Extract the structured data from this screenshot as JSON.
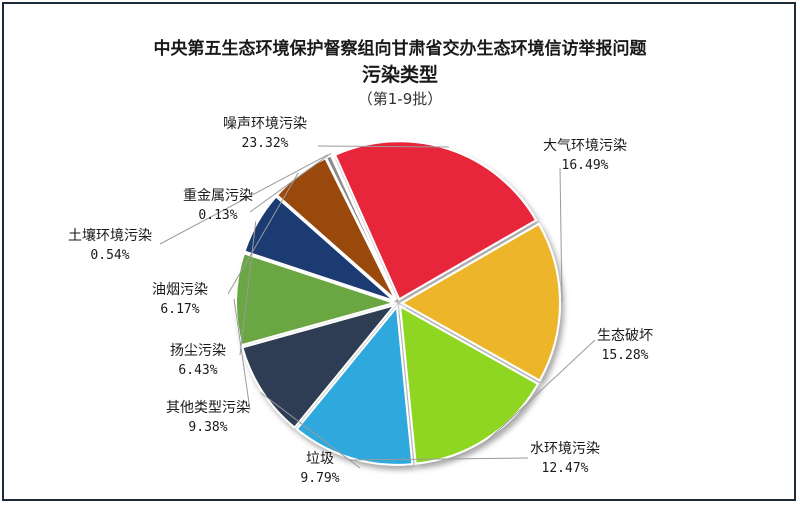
{
  "chart_data": {
    "type": "pie",
    "title": "中央第五生态环境保护督察组向甘肃省交办生态环境信访举报问题",
    "subtitle": "污染类型",
    "subtitle2": "（第1-9批）",
    "slices": [
      {
        "label": "大气环境污染",
        "value": 16.49,
        "value_text": "16.49%",
        "color": "#ecb52a"
      },
      {
        "label": "生态破坏",
        "value": 15.28,
        "value_text": "15.28%",
        "color": "#8fd620"
      },
      {
        "label": "水环境污染",
        "value": 12.47,
        "value_text": "12.47%",
        "color": "#2fa8dd"
      },
      {
        "label": "垃圾",
        "value": 9.79,
        "value_text": "9.79%",
        "color": "#2d3e52"
      },
      {
        "label": "其他类型污染",
        "value": 9.38,
        "value_text": "9.38%",
        "color": "#6aa642"
      },
      {
        "label": "扬尘污染",
        "value": 6.43,
        "value_text": "6.43%",
        "color": "#1d3a72"
      },
      {
        "label": "油烟污染",
        "value": 6.17,
        "value_text": "6.17%",
        "color": "#9a4a0b"
      },
      {
        "label": "土壤环境污染",
        "value": 0.54,
        "value_text": "0.54%",
        "color": "#8a8a8a"
      },
      {
        "label": "重金属污染",
        "value": 0.13,
        "value_text": "0.13%",
        "color": "#4a4a4a"
      },
      {
        "label": "噪声环境污染",
        "value": 23.32,
        "value_text": "23.32%",
        "color": "#e8283a"
      }
    ]
  }
}
